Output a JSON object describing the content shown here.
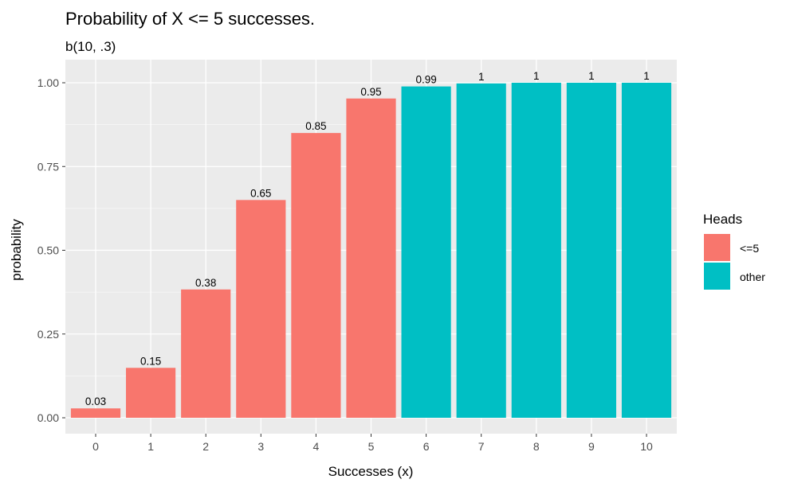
{
  "chart_data": {
    "type": "bar",
    "title": "Probability of X <= 5 successes.",
    "subtitle": "b(10, .3)",
    "xlabel": "Successes (x)",
    "ylabel": "probability",
    "ylim": [
      0,
      1
    ],
    "y_ticks": [
      "0.00",
      "0.25",
      "0.50",
      "0.75",
      "1.00"
    ],
    "y_tick_values": [
      0,
      0.25,
      0.5,
      0.75,
      1.0
    ],
    "categories": [
      "0",
      "1",
      "2",
      "3",
      "4",
      "5",
      "6",
      "7",
      "8",
      "9",
      "10"
    ],
    "values": [
      0.028,
      0.149,
      0.383,
      0.65,
      0.85,
      0.953,
      0.989,
      0.998,
      1.0,
      1.0,
      1.0
    ],
    "value_labels": [
      "0.03",
      "0.15",
      "0.38",
      "0.65",
      "0.85",
      "0.95",
      "0.99",
      "1",
      "1",
      "1",
      "1"
    ],
    "groups": [
      "<=5",
      "<=5",
      "<=5",
      "<=5",
      "<=5",
      "<=5",
      "other",
      "other",
      "other",
      "other",
      "other"
    ],
    "grid": true,
    "legend": {
      "title": "Heads",
      "position": "right",
      "entries": [
        {
          "label": "<=5",
          "color": "#F8766D"
        },
        {
          "label": "other",
          "color": "#00BFC4"
        }
      ]
    },
    "panel_color": "#EBEBEB",
    "grid_color": "#FFFFFF"
  }
}
